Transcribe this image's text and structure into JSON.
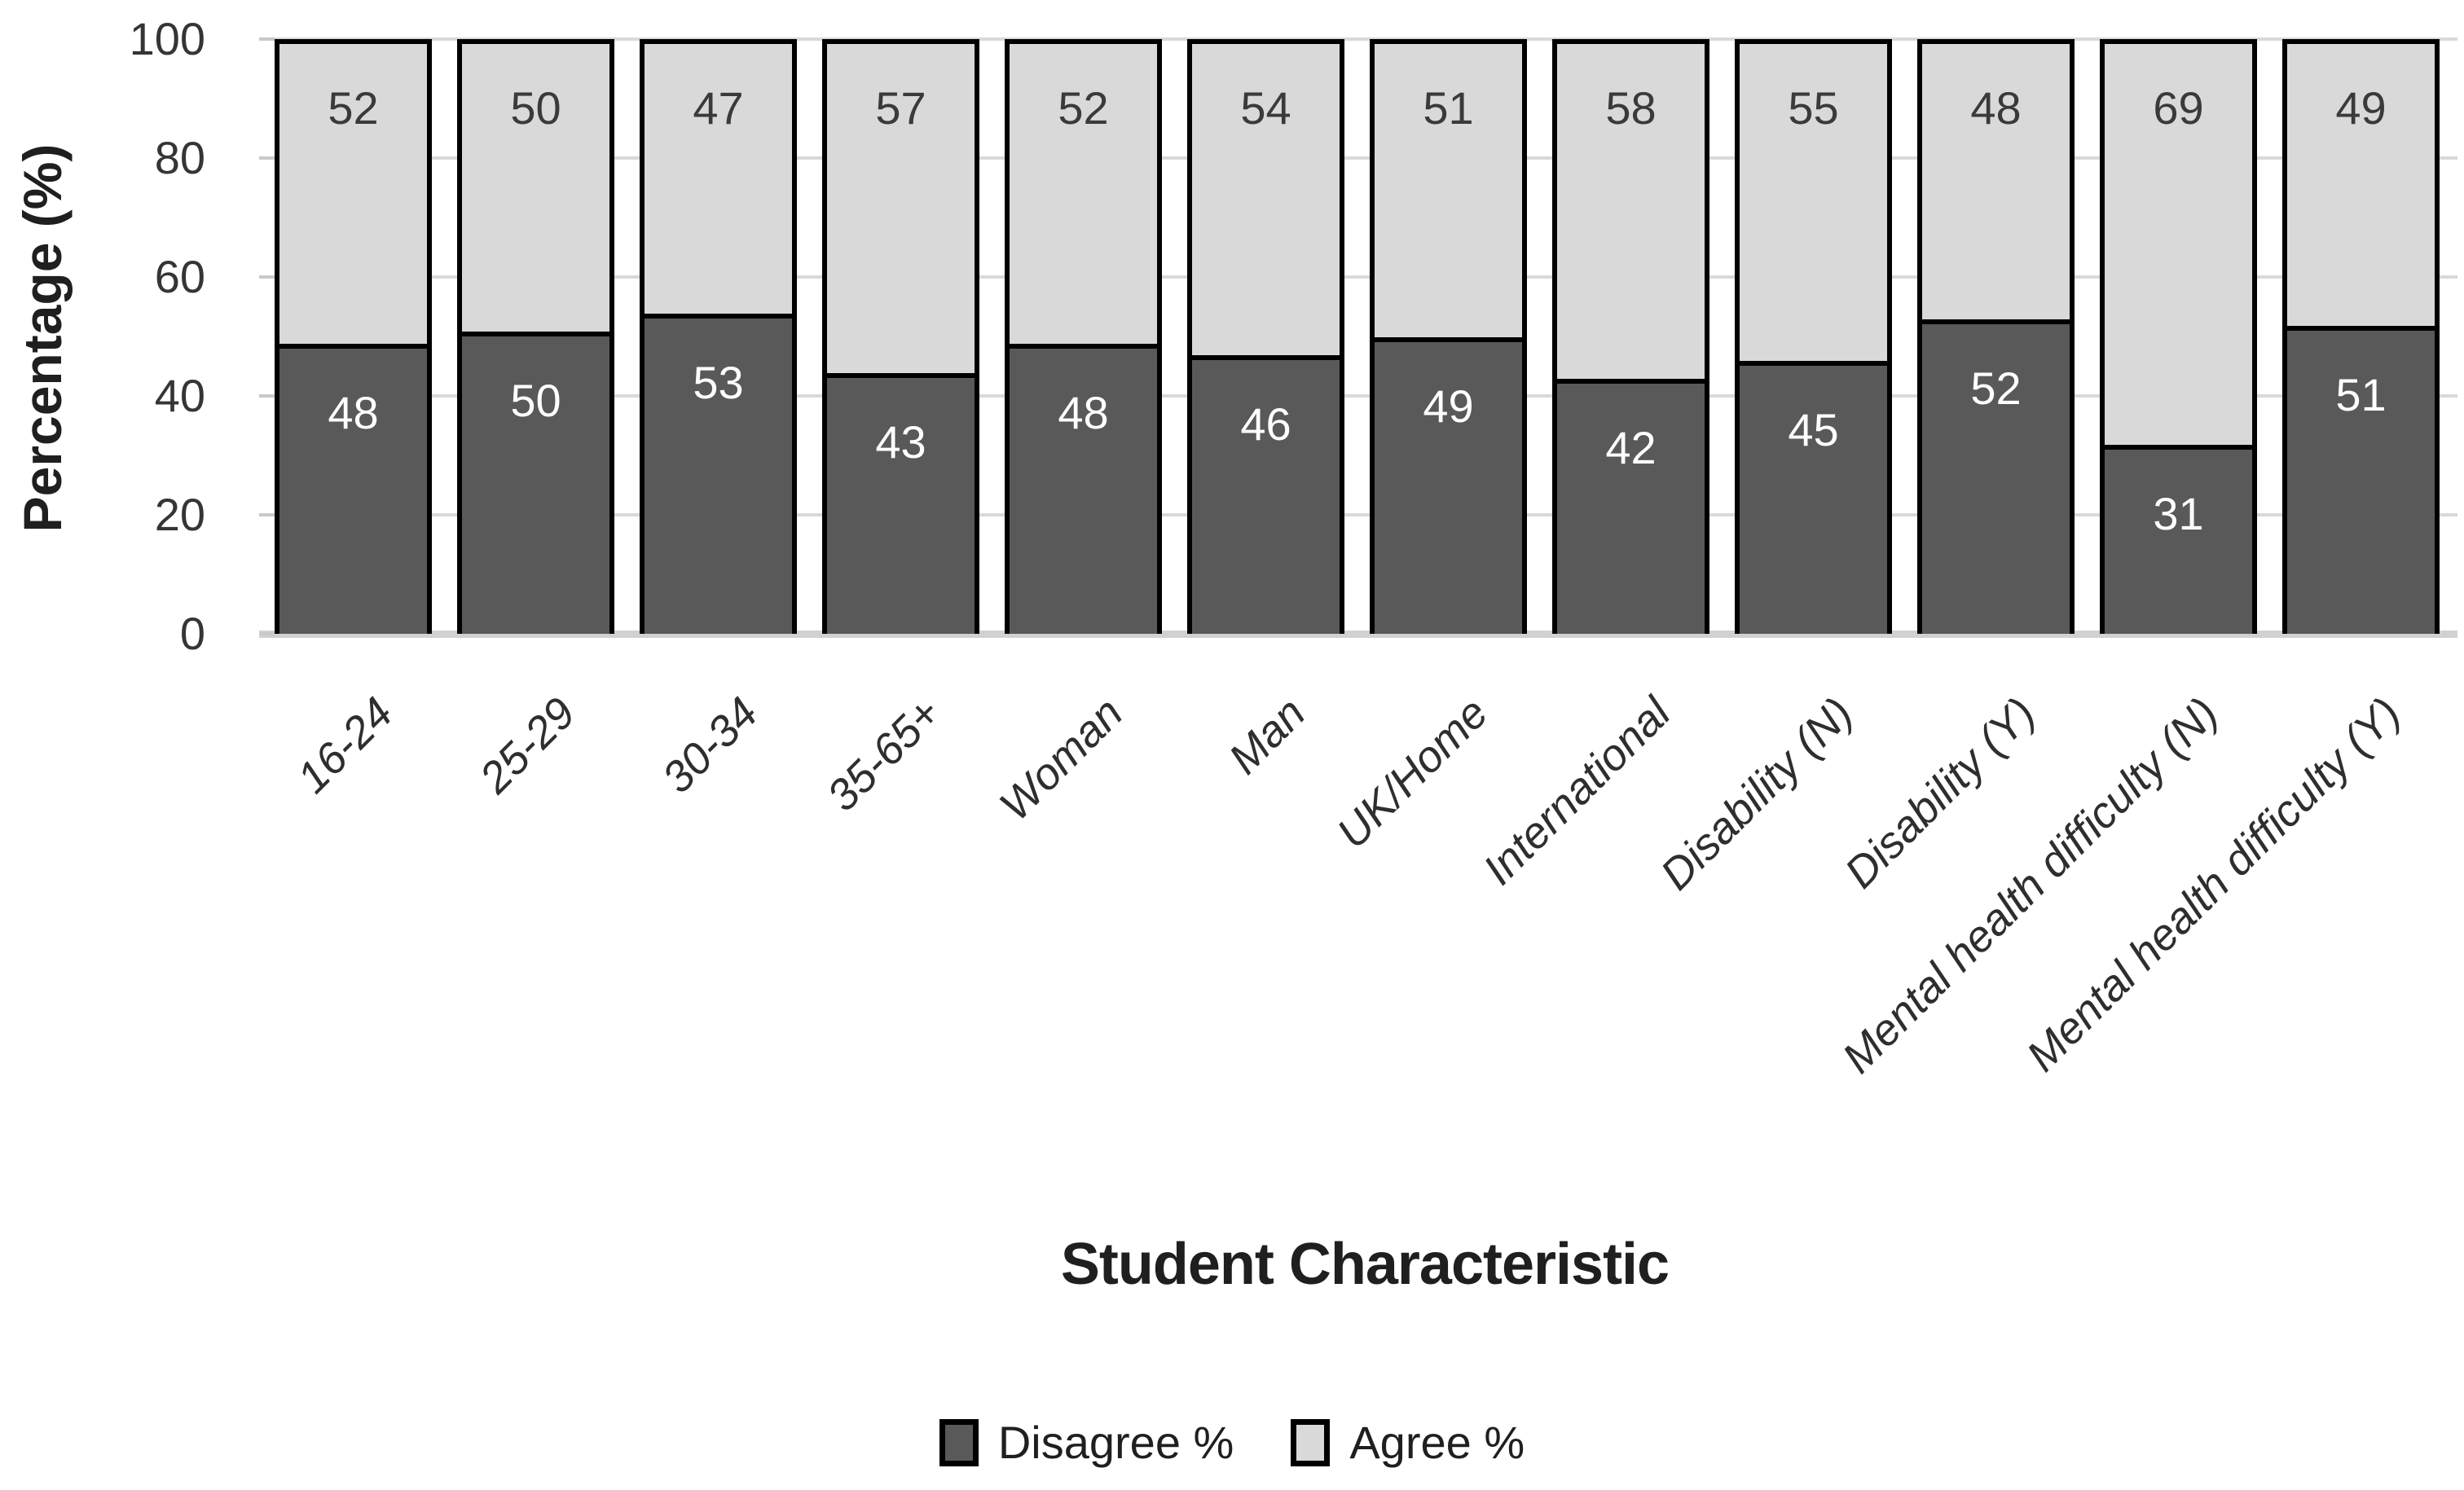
{
  "chart_data": {
    "type": "bar",
    "stacked": true,
    "percent_stacked": true,
    "title": "",
    "xlabel": "Student Characteristic",
    "ylabel": "Percentage (%)",
    "ylim": [
      0,
      100
    ],
    "yticks": [
      0,
      20,
      40,
      60,
      80,
      100
    ],
    "grid": true,
    "legend_position": "bottom",
    "categories": [
      "16-24",
      "25-29",
      "30-34",
      "35-65+",
      "Woman",
      "Man",
      "UK/Home",
      "International",
      "Disability (N)",
      "Disability (Y)",
      "Mental health difficulty (N)",
      "Mental health difficulty (Y)"
    ],
    "series": [
      {
        "name": "Disagree %",
        "color": "#595959",
        "values": [
          48,
          50,
          53,
          43,
          48,
          46,
          49,
          42,
          45,
          52,
          31,
          51
        ]
      },
      {
        "name": "Agree %",
        "color": "#d9d9d9",
        "values": [
          52,
          50,
          47,
          57,
          52,
          54,
          51,
          58,
          55,
          48,
          69,
          49
        ]
      }
    ]
  }
}
